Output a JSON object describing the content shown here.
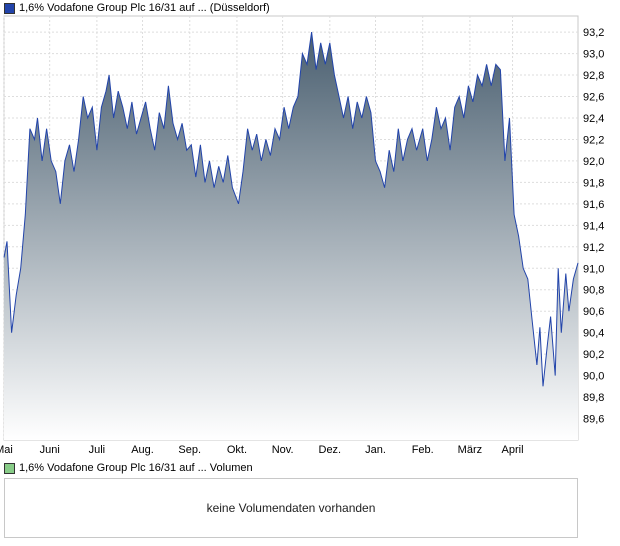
{
  "chart_data": [
    {
      "type": "area",
      "legend": "1,6% Vodafone Group Plc 16/31 auf ... (Düsseldorf)",
      "series_color": "#2244aa",
      "fill_top_color": "#4a5f70",
      "fill_bottom_color": "#ffffff",
      "x_ticks": [
        "Mai",
        "Juni",
        "Juli",
        "Aug.",
        "Sep.",
        "Okt.",
        "Nov.",
        "Dez.",
        "Jan.",
        "Feb.",
        "März",
        "April"
      ],
      "y_ticks": [
        "89,6",
        "89,8",
        "90,0",
        "90,2",
        "90,4",
        "90,6",
        "90,8",
        "91,0",
        "91,2",
        "91,4",
        "91,6",
        "91,8",
        "92,0",
        "92,2",
        "92,4",
        "92,6",
        "92,8",
        "93,0",
        "93,2"
      ],
      "ylim": [
        89.4,
        93.35
      ],
      "grid": true,
      "x_start": "2024-04-01",
      "x_end": "2025-04-13",
      "points": [
        [
          "2024-04-01",
          91.1
        ],
        [
          "2024-04-03",
          91.25
        ],
        [
          "2024-04-06",
          90.4
        ],
        [
          "2024-04-09",
          90.75
        ],
        [
          "2024-04-12",
          91.0
        ],
        [
          "2024-04-15",
          91.5
        ],
        [
          "2024-04-18",
          92.3
        ],
        [
          "2024-04-21",
          92.2
        ],
        [
          "2024-04-23",
          92.4
        ],
        [
          "2024-04-26",
          92.0
        ],
        [
          "2024-04-29",
          92.3
        ],
        [
          "2024-05-02",
          92.0
        ],
        [
          "2024-05-05",
          91.9
        ],
        [
          "2024-05-08",
          91.6
        ],
        [
          "2024-05-11",
          92.0
        ],
        [
          "2024-05-14",
          92.15
        ],
        [
          "2024-05-17",
          91.9
        ],
        [
          "2024-05-20",
          92.2
        ],
        [
          "2024-05-23",
          92.6
        ],
        [
          "2024-05-26",
          92.4
        ],
        [
          "2024-05-29",
          92.5
        ],
        [
          "2024-06-01",
          92.1
        ],
        [
          "2024-06-04",
          92.5
        ],
        [
          "2024-06-07",
          92.65
        ],
        [
          "2024-06-09",
          92.8
        ],
        [
          "2024-06-12",
          92.4
        ],
        [
          "2024-06-15",
          92.65
        ],
        [
          "2024-06-18",
          92.5
        ],
        [
          "2024-06-21",
          92.3
        ],
        [
          "2024-06-24",
          92.55
        ],
        [
          "2024-06-27",
          92.25
        ],
        [
          "2024-06-30",
          92.4
        ],
        [
          "2024-07-03",
          92.55
        ],
        [
          "2024-07-06",
          92.3
        ],
        [
          "2024-07-09",
          92.1
        ],
        [
          "2024-07-12",
          92.45
        ],
        [
          "2024-07-15",
          92.3
        ],
        [
          "2024-07-18",
          92.7
        ],
        [
          "2024-07-21",
          92.35
        ],
        [
          "2024-07-24",
          92.2
        ],
        [
          "2024-07-27",
          92.35
        ],
        [
          "2024-07-30",
          92.1
        ],
        [
          "2024-08-02",
          92.15
        ],
        [
          "2024-08-05",
          91.85
        ],
        [
          "2024-08-08",
          92.15
        ],
        [
          "2024-08-11",
          91.8
        ],
        [
          "2024-08-14",
          92.0
        ],
        [
          "2024-08-17",
          91.75
        ],
        [
          "2024-08-20",
          91.95
        ],
        [
          "2024-08-23",
          91.8
        ],
        [
          "2024-08-26",
          92.05
        ],
        [
          "2024-08-29",
          91.75
        ],
        [
          "2024-09-02",
          91.6
        ],
        [
          "2024-09-05",
          91.9
        ],
        [
          "2024-09-08",
          92.3
        ],
        [
          "2024-09-11",
          92.1
        ],
        [
          "2024-09-14",
          92.25
        ],
        [
          "2024-09-17",
          92.0
        ],
        [
          "2024-09-20",
          92.2
        ],
        [
          "2024-09-23",
          92.05
        ],
        [
          "2024-09-26",
          92.3
        ],
        [
          "2024-09-29",
          92.2
        ],
        [
          "2024-10-02",
          92.5
        ],
        [
          "2024-10-05",
          92.3
        ],
        [
          "2024-10-08",
          92.5
        ],
        [
          "2024-10-11",
          92.6
        ],
        [
          "2024-10-14",
          93.0
        ],
        [
          "2024-10-17",
          92.9
        ],
        [
          "2024-10-20",
          93.2
        ],
        [
          "2024-10-23",
          92.85
        ],
        [
          "2024-10-26",
          93.1
        ],
        [
          "2024-10-29",
          92.9
        ],
        [
          "2024-11-01",
          93.1
        ],
        [
          "2024-11-04",
          92.8
        ],
        [
          "2024-11-07",
          92.6
        ],
        [
          "2024-11-10",
          92.4
        ],
        [
          "2024-11-13",
          92.6
        ],
        [
          "2024-11-16",
          92.3
        ],
        [
          "2024-11-19",
          92.55
        ],
        [
          "2024-11-22",
          92.4
        ],
        [
          "2024-11-25",
          92.6
        ],
        [
          "2024-11-28",
          92.45
        ],
        [
          "2024-12-01",
          92.0
        ],
        [
          "2024-12-04",
          91.9
        ],
        [
          "2024-12-07",
          91.75
        ],
        [
          "2024-12-10",
          92.1
        ],
        [
          "2024-12-13",
          91.9
        ],
        [
          "2024-12-16",
          92.3
        ],
        [
          "2024-12-19",
          92.0
        ],
        [
          "2024-12-22",
          92.2
        ],
        [
          "2024-12-25",
          92.3
        ],
        [
          "2024-12-28",
          92.1
        ],
        [
          "2025-01-01",
          92.3
        ],
        [
          "2025-01-04",
          92.0
        ],
        [
          "2025-01-07",
          92.2
        ],
        [
          "2025-01-10",
          92.5
        ],
        [
          "2025-01-13",
          92.3
        ],
        [
          "2025-01-16",
          92.4
        ],
        [
          "2025-01-19",
          92.1
        ],
        [
          "2025-01-22",
          92.5
        ],
        [
          "2025-01-25",
          92.6
        ],
        [
          "2025-01-28",
          92.4
        ],
        [
          "2025-01-31",
          92.7
        ],
        [
          "2025-02-03",
          92.55
        ],
        [
          "2025-02-06",
          92.8
        ],
        [
          "2025-02-09",
          92.7
        ],
        [
          "2025-02-12",
          92.9
        ],
        [
          "2025-02-15",
          92.7
        ],
        [
          "2025-02-18",
          92.9
        ],
        [
          "2025-02-21",
          92.85
        ],
        [
          "2025-02-24",
          92.0
        ],
        [
          "2025-02-27",
          92.4
        ],
        [
          "2025-03-02",
          91.5
        ],
        [
          "2025-03-05",
          91.3
        ],
        [
          "2025-03-08",
          91.0
        ],
        [
          "2025-03-11",
          90.9
        ],
        [
          "2025-03-14",
          90.5
        ],
        [
          "2025-03-17",
          90.1
        ],
        [
          "2025-03-19",
          90.45
        ],
        [
          "2025-03-21",
          89.9
        ],
        [
          "2025-03-24",
          90.3
        ],
        [
          "2025-03-26",
          90.55
        ],
        [
          "2025-03-29",
          90.0
        ],
        [
          "2025-03-31",
          91.0
        ],
        [
          "2025-04-02",
          90.4
        ],
        [
          "2025-04-05",
          90.95
        ],
        [
          "2025-04-07",
          90.6
        ],
        [
          "2025-04-10",
          90.9
        ],
        [
          "2025-04-13",
          91.05
        ]
      ]
    },
    {
      "type": "bar",
      "legend": "1,6% Vodafone Group Plc 16/31 auf ... Volumen",
      "legend_color": "#88cc88",
      "message": "keine Volumendaten vorhanden",
      "values": []
    }
  ]
}
